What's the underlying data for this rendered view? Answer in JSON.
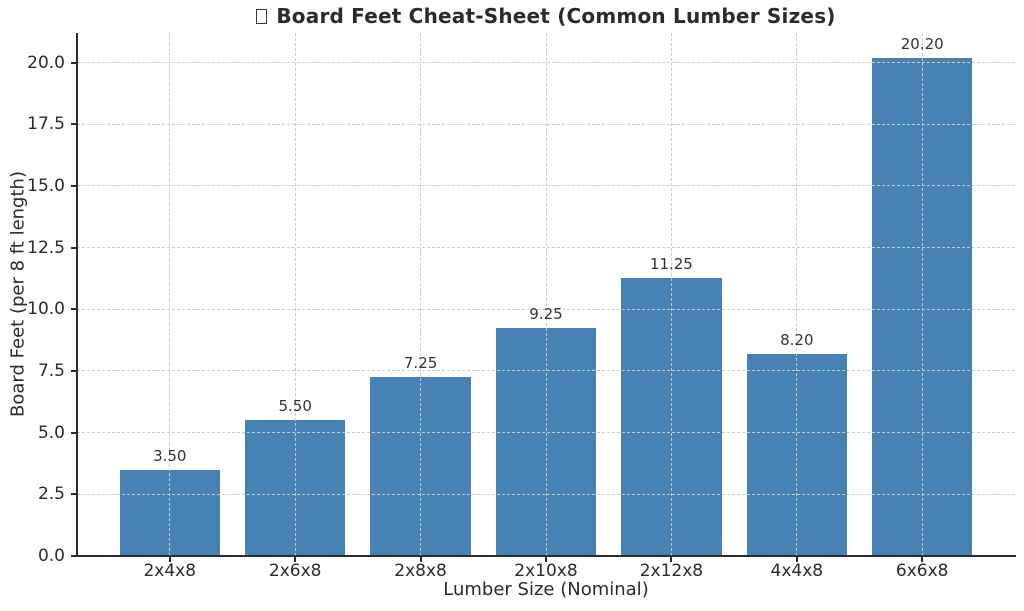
{
  "figure": {
    "title_prefix_icon": "missing-glyph-box"
  },
  "chart_data": {
    "type": "bar",
    "title": "Board Feet Cheat-Sheet (Common Lumber Sizes)",
    "xlabel": "Lumber Size (Nominal)",
    "ylabel": "Board Feet (per 8 ft length)",
    "categories": [
      "2x4x8",
      "2x6x8",
      "2x8x8",
      "2x10x8",
      "2x12x8",
      "4x4x8",
      "6x6x8"
    ],
    "values": [
      3.5,
      5.5,
      7.25,
      9.25,
      11.25,
      8.2,
      20.2
    ],
    "value_labels": [
      "3.50",
      "5.50",
      "7.25",
      "9.25",
      "11.25",
      "8.20",
      "20.20"
    ],
    "yticks": [
      0,
      2.5,
      5,
      7.5,
      10,
      12.5,
      15,
      17.5,
      20
    ],
    "ytick_labels": [
      "0.0",
      "2.5",
      "5.0",
      "7.5",
      "10.0",
      "12.5",
      "15.0",
      "17.5",
      "20.0"
    ],
    "ylim": [
      0,
      21.2
    ],
    "bar_width_data_units": 0.8,
    "grid": "both, dashed, drawn above bars",
    "legend": null,
    "bar_color": "#4682b4",
    "text_color": "#2b2b2b",
    "grid_color": "#cccccc"
  }
}
